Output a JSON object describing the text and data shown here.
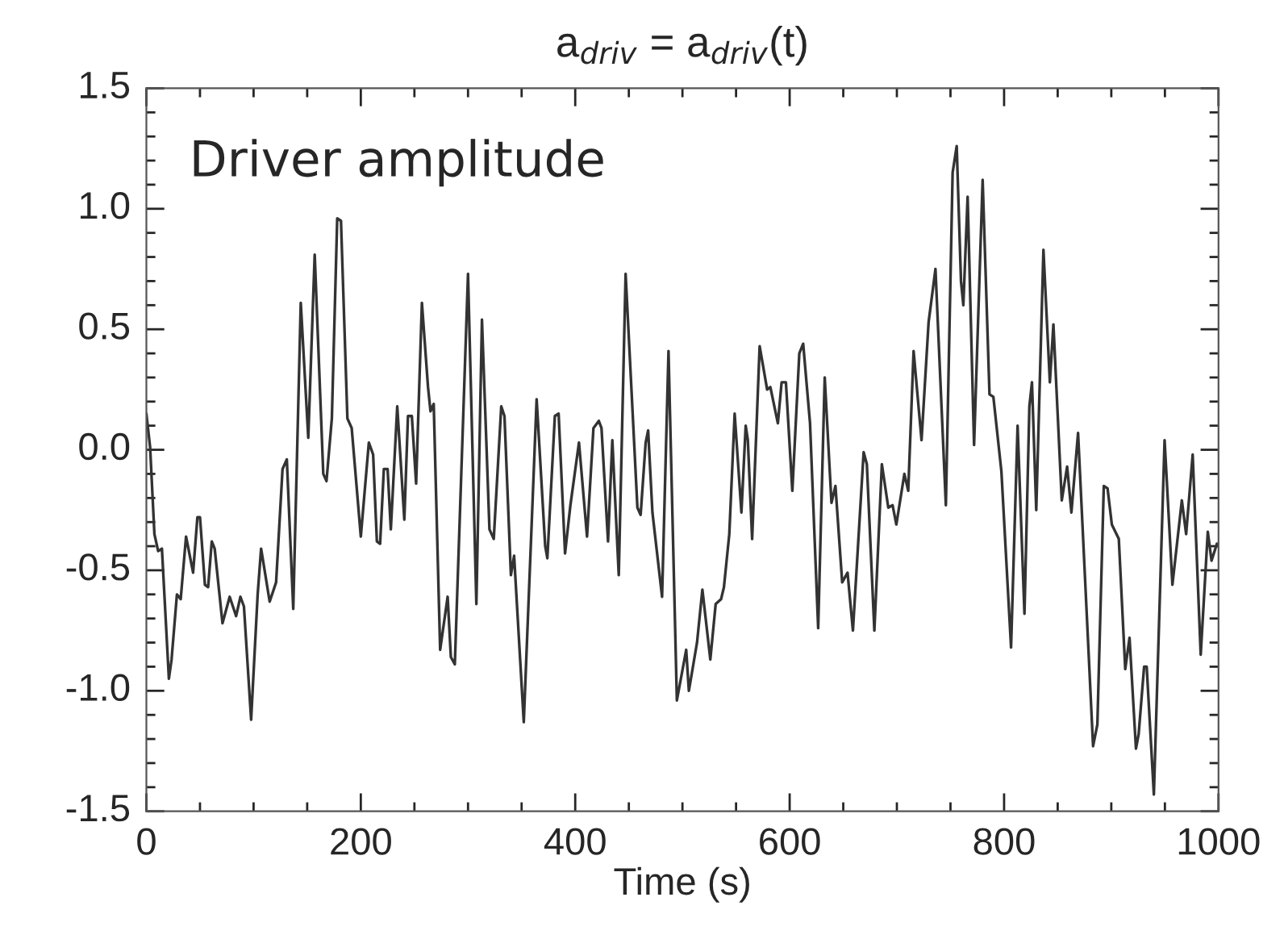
{
  "chart_data": {
    "type": "line",
    "title": "a$_{driv}$ = a$_{driv}$(t)",
    "xlabel": "Time (s)",
    "annotations": [
      "Driver amplitude"
    ],
    "x": [
      0,
      3.5,
      7.5,
      11,
      14.5,
      21,
      23.5,
      28.5,
      32,
      37,
      43.6,
      47.6,
      50,
      54.6,
      57.6,
      61,
      63.7,
      71,
      77.7,
      83.7,
      87.7,
      91,
      97.7,
      103.8,
      107,
      115,
      121,
      127,
      131,
      137,
      144,
      151,
      157,
      165,
      168,
      173,
      178,
      181.5,
      187.5,
      191.5,
      200,
      207.5,
      211.5,
      215,
      218,
      221.5,
      225,
      228,
      234,
      240.6,
      244,
      247.6,
      251.6,
      257,
      262.7,
      265,
      268,
      274,
      281,
      284,
      287.7,
      295,
      300,
      307.8,
      313,
      320,
      324,
      331,
      334,
      340,
      343,
      352,
      364,
      372,
      374,
      381,
      384.5,
      390.5,
      395.5,
      403.5,
      411,
      417,
      422,
      424.5,
      430.6,
      434.6,
      440.6,
      447,
      458,
      461,
      465.7,
      468,
      472,
      481,
      487,
      494.8,
      503.5,
      506,
      513.6,
      518.6,
      526,
      531,
      536,
      538.7,
      543.7,
      548.7,
      555,
      559,
      561,
      565,
      572,
      579,
      582,
      589,
      592.5,
      596.5,
      602.5,
      609,
      612.6,
      619,
      626.6,
      632.7,
      639,
      642.7,
      649,
      654,
      659,
      669,
      672,
      679,
      686,
      692,
      696,
      699.5,
      707,
      710.6,
      715.6,
      723,
      729.6,
      736,
      745.7,
      752,
      755.8,
      759.8,
      762,
      766,
      772,
      780,
      786.4,
      790,
      797.5,
      806.5,
      812.6,
      819,
      823.6,
      826,
      830,
      836.7,
      842.7,
      846,
      853.8,
      858.8,
      862.8,
      869,
      883,
      887,
      893,
      896.5,
      900.5,
      907,
      913,
      917,
      923,
      925.5,
      930.6,
      933,
      939.7,
      949.7,
      957,
      965.8,
      969.8,
      975.9,
      983.4,
      990,
      993.5,
      998.5
    ],
    "series": [
      {
        "color": "#333333",
        "values": [
          0.15,
          0.01,
          -0.35,
          -0.42,
          -0.41,
          -0.95,
          -0.87,
          -0.6,
          -0.62,
          -0.36,
          -0.51,
          -0.28,
          -0.28,
          -0.56,
          -0.57,
          -0.38,
          -0.41,
          -0.72,
          -0.61,
          -0.69,
          -0.61,
          -0.65,
          -1.12,
          -0.6,
          -0.41,
          -0.63,
          -0.55,
          -0.08,
          -0.04,
          -0.66,
          0.61,
          0.05,
          0.81,
          -0.1,
          -0.13,
          0.13,
          0.96,
          0.95,
          0.13,
          0.09,
          -0.36,
          0.03,
          -0.02,
          -0.38,
          -0.39,
          -0.08,
          -0.08,
          -0.33,
          0.18,
          -0.29,
          0.14,
          0.14,
          -0.14,
          0.61,
          0.26,
          0.16,
          0.19,
          -0.83,
          -0.61,
          -0.86,
          -0.89,
          0.07,
          0.73,
          -0.64,
          0.54,
          -0.33,
          -0.37,
          0.18,
          0.14,
          -0.52,
          -0.44,
          -1.13,
          0.21,
          -0.4,
          -0.45,
          0.14,
          0.15,
          -0.43,
          -0.23,
          0.03,
          -0.36,
          0.09,
          0.12,
          0.09,
          -0.38,
          0.04,
          -0.52,
          0.73,
          -0.24,
          -0.27,
          0.03,
          0.08,
          -0.26,
          -0.61,
          0.41,
          -1.04,
          -0.83,
          -1.0,
          -0.8,
          -0.58,
          -0.87,
          -0.64,
          -0.62,
          -0.57,
          -0.35,
          0.15,
          -0.26,
          0.1,
          0.04,
          -0.37,
          0.43,
          0.25,
          0.26,
          0.11,
          0.28,
          0.28,
          -0.17,
          0.4,
          0.44,
          0.11,
          -0.74,
          0.3,
          -0.22,
          -0.15,
          -0.55,
          -0.51,
          -0.75,
          -0.01,
          -0.06,
          -0.75,
          -0.06,
          -0.24,
          -0.23,
          -0.31,
          -0.1,
          -0.17,
          0.41,
          0.04,
          0.53,
          0.75,
          -0.23,
          1.15,
          1.26,
          0.7,
          0.6,
          1.05,
          0.02,
          1.12,
          0.23,
          0.22,
          -0.09,
          -0.82,
          0.1,
          -0.68,
          0.18,
          0.28,
          -0.25,
          0.83,
          0.28,
          0.52,
          -0.21,
          -0.07,
          -0.26,
          0.07,
          -1.23,
          -1.14,
          -0.15,
          -0.16,
          -0.31,
          -0.37,
          -0.91,
          -0.78,
          -1.24,
          -1.18,
          -0.9,
          -0.9,
          -1.43,
          0.04,
          -0.56,
          -0.21,
          -0.35,
          -0.02,
          -0.85,
          -0.34,
          -0.46,
          -0.39
        ]
      }
    ],
    "xlim": [
      0,
      1000
    ],
    "ylim": [
      -1.5,
      1.5
    ],
    "xticks": [
      0,
      {
        "value": 50,
        "label": null
      },
      {
        "value": 100,
        "label": null
      },
      {
        "value": 150,
        "label": null
      },
      200,
      {
        "value": 250,
        "label": null
      },
      {
        "value": 300,
        "label": null
      },
      {
        "value": 350,
        "label": null
      },
      400,
      {
        "value": 450,
        "label": null
      },
      {
        "value": 500,
        "label": null
      },
      {
        "value": 550,
        "label": null
      },
      600,
      {
        "value": 650,
        "label": null
      },
      {
        "value": 700,
        "label": null
      },
      {
        "value": 750,
        "label": null
      },
      800,
      {
        "value": 850,
        "label": null
      },
      {
        "value": 900,
        "label": null
      },
      {
        "value": 950,
        "label": null
      },
      1000
    ],
    "yticks": [
      {
        "value": -1.5,
        "label": "-1.5"
      },
      {
        "value": -1.4,
        "label": null
      },
      {
        "value": -1.3,
        "label": null
      },
      {
        "value": -1.2,
        "label": null
      },
      {
        "value": -1.1,
        "label": null
      },
      {
        "value": -1.0,
        "label": "-1.0"
      },
      {
        "value": -0.9,
        "label": null
      },
      {
        "value": -0.8,
        "label": null
      },
      {
        "value": -0.7,
        "label": null
      },
      {
        "value": -0.6,
        "label": null
      },
      {
        "value": -0.5,
        "label": "-0.5"
      },
      {
        "value": -0.4,
        "label": null
      },
      {
        "value": -0.3,
        "label": null
      },
      {
        "value": -0.2,
        "label": null
      },
      {
        "value": -0.1,
        "label": null
      },
      {
        "value": 0,
        "label": "0.0"
      },
      {
        "value": 0.1,
        "label": null
      },
      {
        "value": 0.2,
        "label": null
      },
      {
        "value": 0.3,
        "label": null
      },
      {
        "value": 0.4,
        "label": null
      },
      {
        "value": 0.5,
        "label": "0.5"
      },
      {
        "value": 0.6,
        "label": null
      },
      {
        "value": 0.7,
        "label": null
      },
      {
        "value": 0.8,
        "label": null
      },
      {
        "value": 0.9,
        "label": null
      },
      {
        "value": 1.0,
        "label": "1.0"
      },
      {
        "value": 1.1,
        "label": null
      },
      {
        "value": 1.2,
        "label": null
      },
      {
        "value": 1.3,
        "label": null
      },
      {
        "value": 1.4,
        "label": null
      },
      {
        "value": 1.5,
        "label": "1.5"
      }
    ],
    "grid": false,
    "legend": false
  }
}
